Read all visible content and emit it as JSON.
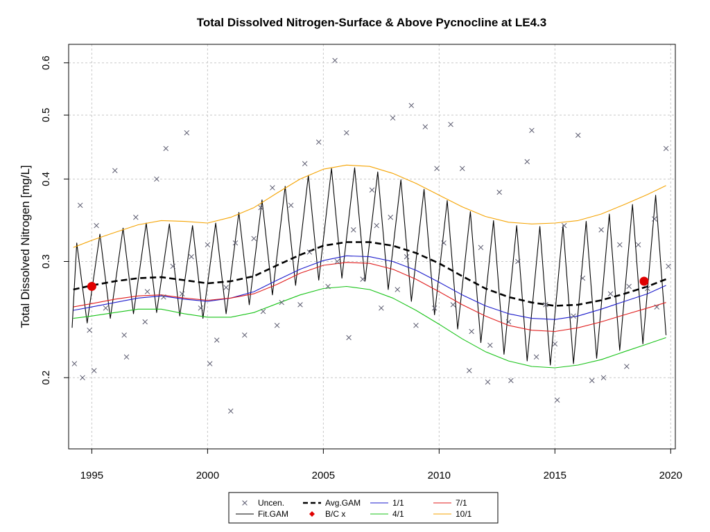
{
  "chart_data": {
    "type": "line",
    "title": "Total Dissolved Nitrogen-Surface & Above Pycnocline at LE4.3",
    "ylabel": "Total Dissolved Nitrogen [mg/L]",
    "xlabel": "",
    "y_scale": "log",
    "xlim": [
      1994.0,
      2020.2
    ],
    "ylim": [
      0.156,
      0.64
    ],
    "x_ticks": [
      1995,
      2000,
      2005,
      2010,
      2015,
      2020
    ],
    "y_ticks": [
      0.2,
      0.3,
      0.4,
      0.5,
      0.6
    ],
    "x_tick_labels": [
      "1995",
      "2000",
      "2005",
      "2010",
      "2015",
      "2020"
    ],
    "y_tick_labels": [
      "0.2",
      "0.3",
      "0.4",
      "0.5",
      "0.6"
    ],
    "grid": true,
    "legend_position": "bottom",
    "legend": [
      {
        "key": "uncen",
        "label": "Uncen.",
        "marker": "x",
        "color": "#5a5a6e"
      },
      {
        "key": "avg",
        "label": "Avg.GAM",
        "line": "dashed",
        "color": "#000000"
      },
      {
        "key": "p1",
        "label": "1/1",
        "line": "solid",
        "color": "#1a1acc"
      },
      {
        "key": "p7",
        "label": "7/1",
        "line": "solid",
        "color": "#e01b1b"
      },
      {
        "key": "fit",
        "label": "Fit.GAM",
        "line": "solid",
        "color": "#000000"
      },
      {
        "key": "bc",
        "label": "B/C x",
        "marker": "dot",
        "color": "#e00000"
      },
      {
        "key": "p4",
        "label": "4/1",
        "line": "solid",
        "color": "#17c317"
      },
      {
        "key": "p10",
        "label": "10/1",
        "line": "solid",
        "color": "#f5a300"
      }
    ],
    "series": [
      {
        "key": "avg",
        "name": "Avg.GAM",
        "color": "#000000",
        "x": [
          1994.2,
          1995.0,
          1996.0,
          1997.0,
          1998.0,
          1999.0,
          2000.0,
          2001.0,
          2002.0,
          2003.0,
          2004.0,
          2005.0,
          2006.0,
          2007.0,
          2008.0,
          2009.0,
          2010.0,
          2011.0,
          2012.0,
          2013.0,
          2014.0,
          2015.0,
          2016.0,
          2017.0,
          2018.0,
          2019.0,
          2019.8
        ],
        "values": [
          0.272,
          0.276,
          0.28,
          0.283,
          0.284,
          0.281,
          0.278,
          0.28,
          0.285,
          0.296,
          0.307,
          0.317,
          0.321,
          0.321,
          0.317,
          0.309,
          0.298,
          0.285,
          0.273,
          0.265,
          0.26,
          0.257,
          0.258,
          0.262,
          0.268,
          0.275,
          0.282
        ]
      },
      {
        "key": "p1",
        "name": "1/1",
        "color": "#1a1acc",
        "x": [
          1994.2,
          1995.0,
          1996.0,
          1997.0,
          1998.0,
          1999.0,
          2000.0,
          2001.0,
          2002.0,
          2003.0,
          2004.0,
          2005.0,
          2006.0,
          2007.0,
          2008.0,
          2009.0,
          2010.0,
          2011.0,
          2012.0,
          2013.0,
          2014.0,
          2015.0,
          2016.0,
          2017.0,
          2018.0,
          2019.0,
          2019.8
        ],
        "values": [
          0.253,
          0.256,
          0.26,
          0.264,
          0.266,
          0.263,
          0.261,
          0.264,
          0.27,
          0.281,
          0.292,
          0.301,
          0.306,
          0.305,
          0.3,
          0.291,
          0.279,
          0.267,
          0.257,
          0.25,
          0.246,
          0.245,
          0.248,
          0.254,
          0.261,
          0.268,
          0.276
        ]
      },
      {
        "key": "p7",
        "name": "7/1",
        "color": "#e01b1b",
        "x": [
          1994.2,
          1995.0,
          1996.0,
          1997.0,
          1998.0,
          1999.0,
          2000.0,
          2001.0,
          2002.0,
          2003.0,
          2004.0,
          2005.0,
          2006.0,
          2007.0,
          2008.0,
          2009.0,
          2010.0,
          2011.0,
          2012.0,
          2013.0,
          2014.0,
          2015.0,
          2016.0,
          2017.0,
          2018.0,
          2019.0,
          2019.8
        ],
        "values": [
          0.256,
          0.259,
          0.263,
          0.266,
          0.267,
          0.264,
          0.262,
          0.264,
          0.268,
          0.277,
          0.288,
          0.296,
          0.299,
          0.298,
          0.292,
          0.282,
          0.27,
          0.258,
          0.248,
          0.24,
          0.236,
          0.235,
          0.238,
          0.243,
          0.249,
          0.255,
          0.26
        ]
      },
      {
        "key": "p4",
        "name": "4/1",
        "color": "#17c317",
        "x": [
          1994.2,
          1995.0,
          1996.0,
          1997.0,
          1998.0,
          1999.0,
          2000.0,
          2001.0,
          2002.0,
          2003.0,
          2004.0,
          2005.0,
          2006.0,
          2007.0,
          2008.0,
          2009.0,
          2010.0,
          2011.0,
          2012.0,
          2013.0,
          2014.0,
          2015.0,
          2016.0,
          2017.0,
          2018.0,
          2019.0,
          2019.8
        ],
        "values": [
          0.246,
          0.248,
          0.251,
          0.254,
          0.254,
          0.25,
          0.247,
          0.247,
          0.251,
          0.259,
          0.267,
          0.273,
          0.275,
          0.272,
          0.264,
          0.253,
          0.241,
          0.229,
          0.219,
          0.212,
          0.208,
          0.207,
          0.209,
          0.213,
          0.219,
          0.225,
          0.23
        ]
      },
      {
        "key": "p10",
        "name": "10/1",
        "color": "#f5a300",
        "x": [
          1994.2,
          1995.0,
          1996.0,
          1997.0,
          1998.0,
          1999.0,
          2000.0,
          2001.0,
          2002.0,
          2003.0,
          2004.0,
          2005.0,
          2006.0,
          2007.0,
          2008.0,
          2009.0,
          2010.0,
          2011.0,
          2012.0,
          2013.0,
          2014.0,
          2015.0,
          2016.0,
          2017.0,
          2018.0,
          2019.0,
          2019.8
        ],
        "values": [
          0.315,
          0.323,
          0.332,
          0.341,
          0.346,
          0.345,
          0.343,
          0.35,
          0.362,
          0.381,
          0.4,
          0.414,
          0.42,
          0.418,
          0.408,
          0.394,
          0.378,
          0.363,
          0.351,
          0.344,
          0.342,
          0.343,
          0.346,
          0.354,
          0.366,
          0.379,
          0.391
        ]
      },
      {
        "key": "fit",
        "name": "Fit.GAM",
        "color": "#000000",
        "x": [
          1994.15,
          1994.35,
          1994.8,
          1995.35,
          1995.8,
          1996.35,
          1996.8,
          1997.35,
          1997.8,
          1998.35,
          1998.8,
          1999.35,
          1999.8,
          2000.35,
          2000.8,
          2001.35,
          2001.8,
          2002.35,
          2002.8,
          2003.35,
          2003.8,
          2004.35,
          2004.8,
          2005.35,
          2005.8,
          2006.35,
          2006.8,
          2007.35,
          2007.8,
          2008.35,
          2008.8,
          2009.35,
          2009.8,
          2010.35,
          2010.8,
          2011.35,
          2011.8,
          2012.35,
          2012.8,
          2013.35,
          2013.8,
          2014.35,
          2014.8,
          2015.35,
          2015.8,
          2016.35,
          2016.8,
          2017.35,
          2017.8,
          2018.35,
          2018.8,
          2019.35,
          2019.8
        ],
        "values": [
          0.238,
          0.32,
          0.242,
          0.33,
          0.246,
          0.337,
          0.25,
          0.343,
          0.251,
          0.342,
          0.248,
          0.34,
          0.246,
          0.343,
          0.25,
          0.356,
          0.258,
          0.372,
          0.267,
          0.39,
          0.276,
          0.405,
          0.281,
          0.415,
          0.283,
          0.416,
          0.28,
          0.41,
          0.272,
          0.399,
          0.261,
          0.386,
          0.249,
          0.371,
          0.237,
          0.357,
          0.226,
          0.346,
          0.217,
          0.34,
          0.212,
          0.339,
          0.209,
          0.34,
          0.21,
          0.345,
          0.214,
          0.354,
          0.22,
          0.366,
          0.225,
          0.378,
          0.232
        ]
      }
    ],
    "uncensored_points": {
      "x": [
        1994.25,
        1994.5,
        1994.9,
        1995.2,
        1995.6,
        1996.0,
        1996.4,
        1996.9,
        1997.3,
        1997.8,
        1998.1,
        1998.5,
        1998.9,
        1999.3,
        1999.7,
        2000.0,
        2000.4,
        2000.8,
        2001.2,
        2001.6,
        2002.0,
        2002.4,
        2002.8,
        2003.2,
        2003.6,
        2004.0,
        2004.4,
        2004.8,
        2005.2,
        2005.6,
        2006.0,
        2006.3,
        2006.7,
        2007.1,
        2007.5,
        2007.9,
        2008.2,
        2008.6,
        2009.0,
        2009.4,
        2009.8,
        2010.2,
        2010.6,
        2011.0,
        2011.4,
        2011.8,
        2012.2,
        2012.6,
        2013.0,
        2013.4,
        2013.8,
        2014.2,
        2014.6,
        2015.0,
        2015.4,
        2015.8,
        2016.2,
        2016.6,
        2017.0,
        2017.4,
        2017.8,
        2018.2,
        2018.6,
        2019.0,
        2019.4,
        2019.8,
        1994.6,
        1995.1,
        1996.5,
        1997.4,
        1998.2,
        1999.1,
        2000.1,
        2001.0,
        2002.3,
        2003.0,
        2004.2,
        2005.5,
        2006.1,
        2007.3,
        2008.0,
        2008.8,
        2009.9,
        2010.5,
        2011.3,
        2012.1,
        2013.1,
        2014.0,
        2015.1,
        2016.0,
        2017.1,
        2018.1,
        2019.3,
        2019.9
      ],
      "values": [
        0.21,
        0.365,
        0.236,
        0.34,
        0.255,
        0.412,
        0.232,
        0.35,
        0.243,
        0.4,
        0.265,
        0.295,
        0.268,
        0.305,
        0.255,
        0.318,
        0.228,
        0.274,
        0.32,
        0.232,
        0.325,
        0.252,
        0.388,
        0.26,
        0.365,
        0.258,
        0.31,
        0.455,
        0.275,
        0.3,
        0.47,
        0.335,
        0.282,
        0.385,
        0.255,
        0.35,
        0.272,
        0.305,
        0.24,
        0.48,
        0.255,
        0.32,
        0.258,
        0.415,
        0.235,
        0.315,
        0.224,
        0.382,
        0.243,
        0.3,
        0.425,
        0.215,
        0.258,
        0.225,
        0.34,
        0.248,
        0.283,
        0.198,
        0.335,
        0.268,
        0.318,
        0.275,
        0.318,
        0.273,
        0.256,
        0.445,
        0.2,
        0.205,
        0.215,
        0.27,
        0.445,
        0.47,
        0.21,
        0.178,
        0.362,
        0.24,
        0.422,
        0.605,
        0.23,
        0.34,
        0.495,
        0.517,
        0.415,
        0.484,
        0.205,
        0.197,
        0.198,
        0.474,
        0.185,
        0.466,
        0.2,
        0.208,
        0.348,
        0.295
      ]
    },
    "bc_points": {
      "x": [
        1995.0,
        2018.85
      ],
      "values": [
        0.275,
        0.28
      ]
    }
  }
}
